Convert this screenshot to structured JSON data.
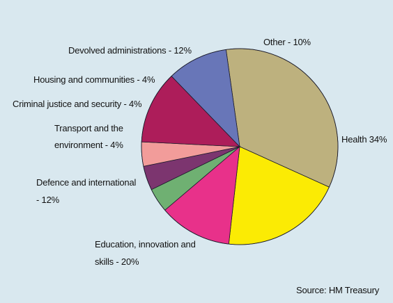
{
  "chart_data": {
    "type": "pie",
    "source": "Source: HM Treasury",
    "slices": [
      {
        "label": "Health 34%",
        "value": 34,
        "color": "#bdb17e"
      },
      {
        "label": "Education, innovation and skills - 20%",
        "value": 20,
        "color": "#fbeb04"
      },
      {
        "label": "Defence and international - 12%",
        "value": 12,
        "color": "#e8318a"
      },
      {
        "label": "Transport and the environment - 4%",
        "value": 4,
        "color": "#6fb072"
      },
      {
        "label": "Criminal justice and security - 4%",
        "value": 4,
        "color": "#7c356f"
      },
      {
        "label": "Housing and communities - 4%",
        "value": 4,
        "color": "#f29c9a"
      },
      {
        "label": "Devolved administrations - 12%",
        "value": 12,
        "color": "#ad1d5a"
      },
      {
        "label": "Other - 10%",
        "value": 10,
        "color": "#6876b8"
      }
    ]
  },
  "labels": {
    "health": "Health 34%",
    "education_l1": "Education, innovation and",
    "education_l2": "skills - 20%",
    "defence_l1": "Defence and international",
    "defence_l2": "- 12%",
    "transport_l1": "Transport and the",
    "transport_l2": "environment - 4%",
    "criminal": "Criminal justice and security - 4%",
    "housing": "Housing and communities - 4%",
    "devolved": "Devolved administrations - 12%",
    "other": "Other - 10%",
    "source": "Source: HM Treasury"
  }
}
